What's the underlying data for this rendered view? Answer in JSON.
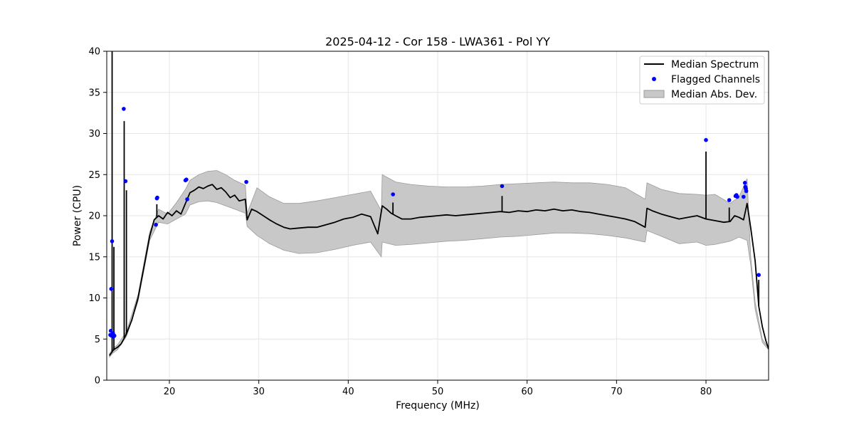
{
  "chart_data": {
    "type": "line",
    "title": "2025-04-12 - Cor 158 - LWA361 - Pol YY",
    "xlabel": "Frequency (MHz)",
    "ylabel": "Power (CPU)",
    "xlim": [
      13.0,
      87.0
    ],
    "ylim": [
      0,
      40
    ],
    "x_ticks": [
      20,
      30,
      40,
      50,
      60,
      70,
      80
    ],
    "y_ticks": [
      0,
      5,
      10,
      15,
      20,
      25,
      30,
      35,
      40
    ],
    "grid": true,
    "legend_position": "top-right",
    "legend": [
      "Median Spectrum",
      "Flagged Channels",
      "Median Abs. Dev."
    ],
    "colors": {
      "median": "#000000",
      "flagged": "#0000ff",
      "mad": "#c8c8c8",
      "mad_edge": "#9a9a9a"
    },
    "series": [
      {
        "name": "Median Spectrum",
        "x": [
          13.3,
          13.5,
          13.7,
          13.9,
          14.2,
          14.6,
          15.2,
          15.8,
          16.5,
          17.2,
          17.8,
          18.3,
          18.8,
          19.3,
          19.8,
          20.3,
          20.8,
          21.3,
          21.8,
          22.3,
          22.8,
          23.3,
          23.8,
          24.3,
          24.8,
          25.3,
          25.8,
          26.3,
          26.8,
          27.3,
          27.8,
          28.5,
          28.7,
          29.2,
          29.8,
          30.5,
          31.2,
          32.0,
          32.8,
          33.5,
          34.5,
          35.5,
          36.5,
          37.5,
          38.5,
          39.5,
          40.5,
          41.5,
          42.5,
          43.3,
          43.8,
          44.3,
          44.8,
          45.3,
          46.0,
          47.0,
          48.0,
          49.0,
          50.0,
          51.0,
          52.0,
          53.0,
          54.0,
          55.0,
          56.0,
          57.0,
          58.0,
          59.0,
          60.0,
          61.0,
          62.0,
          63.0,
          64.0,
          65.0,
          66.0,
          67.0,
          68.0,
          69.0,
          70.0,
          71.0,
          72.0,
          73.2,
          73.4,
          74.0,
          75.0,
          76.0,
          77.0,
          78.0,
          79.0,
          80.0,
          81.0,
          82.0,
          82.7,
          83.2,
          83.7,
          84.2,
          84.6,
          85.0,
          85.5,
          85.9,
          86.3,
          86.7,
          87.0
        ],
        "y": [
          3.0,
          3.3,
          3.6,
          3.8,
          4.0,
          4.4,
          5.6,
          7.3,
          10.0,
          14.0,
          17.5,
          19.5,
          20.0,
          19.6,
          20.4,
          20.0,
          20.6,
          20.2,
          21.5,
          22.8,
          23.1,
          23.5,
          23.3,
          23.6,
          23.8,
          23.2,
          23.4,
          22.9,
          22.2,
          22.5,
          21.8,
          22.0,
          19.5,
          20.8,
          20.5,
          20.0,
          19.5,
          19.0,
          18.6,
          18.4,
          18.5,
          18.6,
          18.6,
          18.9,
          19.2,
          19.6,
          19.8,
          20.2,
          19.9,
          17.8,
          21.2,
          20.8,
          20.3,
          20.0,
          19.6,
          19.6,
          19.8,
          19.9,
          20.0,
          20.1,
          20.0,
          20.1,
          20.2,
          20.3,
          20.4,
          20.5,
          20.4,
          20.6,
          20.5,
          20.7,
          20.6,
          20.8,
          20.6,
          20.7,
          20.5,
          20.4,
          20.2,
          20.0,
          19.8,
          19.6,
          19.3,
          18.6,
          20.9,
          20.6,
          20.2,
          19.9,
          19.6,
          19.8,
          20.0,
          19.6,
          19.4,
          19.2,
          19.3,
          20.0,
          19.8,
          19.5,
          21.5,
          18.5,
          14.5,
          9.0,
          6.5,
          4.8,
          3.8
        ]
      },
      {
        "name": "Median Abs. Dev.",
        "x": [
          13.3,
          13.7,
          14.2,
          15.2,
          16.5,
          17.8,
          18.8,
          19.8,
          20.8,
          21.8,
          22.3,
          23.3,
          24.3,
          25.3,
          26.3,
          27.3,
          28.5,
          28.7,
          29.8,
          31.2,
          32.8,
          34.5,
          36.5,
          38.5,
          40.5,
          42.5,
          43.7,
          43.8,
          45.3,
          47.0,
          49.0,
          51.0,
          53.0,
          55.0,
          57.0,
          59.0,
          61.0,
          63.0,
          65.0,
          67.0,
          69.0,
          71.0,
          73.2,
          73.4,
          75.0,
          77.0,
          79.0,
          80.0,
          81.0,
          82.7,
          83.7,
          84.6,
          85.0,
          85.5,
          86.3,
          87.0
        ],
        "lower": [
          2.8,
          3.3,
          3.7,
          5.3,
          9.6,
          17.0,
          19.2,
          19.0,
          19.6,
          20.2,
          21.3,
          21.7,
          21.8,
          21.6,
          21.2,
          20.8,
          20.3,
          18.7,
          17.6,
          16.6,
          15.8,
          15.4,
          15.5,
          15.9,
          16.4,
          16.8,
          15.0,
          16.8,
          16.4,
          16.5,
          16.7,
          16.9,
          17.0,
          17.2,
          17.4,
          17.5,
          17.7,
          17.9,
          17.9,
          17.8,
          17.6,
          17.3,
          16.8,
          18.2,
          17.5,
          16.6,
          16.8,
          16.4,
          16.5,
          16.9,
          17.4,
          17.0,
          14.0,
          8.6,
          4.6,
          3.7
        ],
        "upper": [
          3.2,
          3.9,
          4.3,
          5.9,
          10.4,
          18.0,
          20.8,
          20.2,
          21.6,
          23.2,
          24.3,
          25.0,
          25.4,
          25.5,
          25.0,
          24.3,
          23.7,
          20.3,
          23.4,
          22.3,
          21.5,
          21.5,
          21.8,
          22.2,
          22.6,
          23.0,
          20.6,
          25.0,
          24.1,
          23.8,
          23.6,
          23.5,
          23.5,
          23.6,
          23.8,
          23.9,
          24.0,
          24.1,
          24.0,
          24.0,
          23.8,
          23.4,
          22.0,
          24.0,
          23.2,
          22.7,
          22.6,
          22.5,
          22.6,
          21.5,
          22.3,
          24.5,
          15.0,
          9.5,
          5.0,
          3.9
        ]
      },
      {
        "name": "Flagged Channels",
        "x": [
          13.4,
          13.45,
          13.5,
          13.55,
          13.6,
          13.7,
          13.75,
          13.85,
          14.9,
          15.1,
          18.5,
          18.6,
          18.65,
          21.8,
          21.9,
          22.0,
          28.6,
          45.0,
          57.2,
          80.0,
          82.6,
          83.3,
          83.4,
          83.5,
          84.2,
          84.35,
          84.4,
          84.45,
          84.5,
          85.9
        ],
        "y": [
          5.5,
          6.0,
          11.1,
          5.4,
          16.9,
          5.7,
          5.3,
          5.4,
          33.0,
          24.2,
          18.9,
          22.1,
          22.2,
          24.3,
          24.4,
          22.0,
          24.1,
          22.6,
          23.6,
          29.2,
          21.9,
          22.4,
          22.5,
          22.3,
          22.3,
          24.0,
          23.5,
          23.3,
          23.0,
          12.8
        ]
      }
    ],
    "spikes": [
      {
        "x": 13.6,
        "y": 40.0
      },
      {
        "x": 13.8,
        "y": 16.2
      },
      {
        "x": 14.95,
        "y": 31.5
      },
      {
        "x": 15.2,
        "y": 23.1
      },
      {
        "x": 18.6,
        "y": 21.4
      },
      {
        "x": 45.0,
        "y": 21.6
      },
      {
        "x": 57.2,
        "y": 22.4
      },
      {
        "x": 80.0,
        "y": 27.8
      },
      {
        "x": 82.6,
        "y": 21.0
      },
      {
        "x": 85.9,
        "y": 12.2
      }
    ]
  }
}
